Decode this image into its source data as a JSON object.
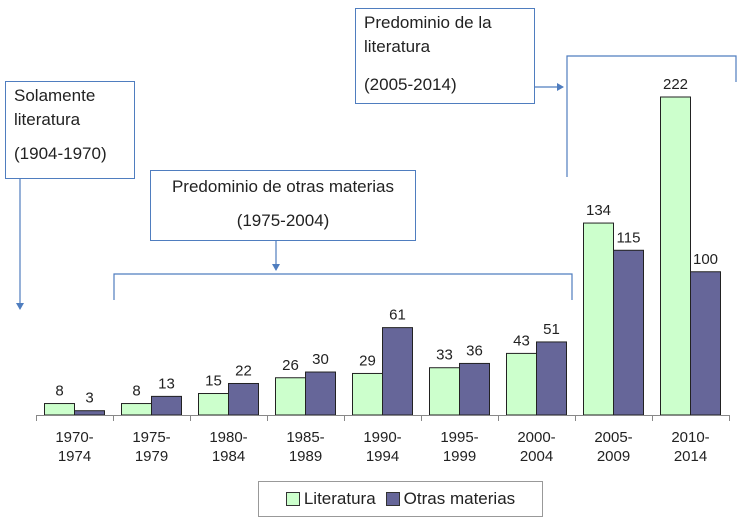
{
  "chart_data": {
    "type": "bar",
    "categories": [
      [
        "1970-",
        "1974"
      ],
      [
        "1975-",
        "1979"
      ],
      [
        "1980-",
        "1984"
      ],
      [
        "1985-",
        "1989"
      ],
      [
        "1990-",
        "1994"
      ],
      [
        "1995-",
        "1999"
      ],
      [
        "2000-",
        "2004"
      ],
      [
        "2005-",
        "2009"
      ],
      [
        "2010-",
        "2014"
      ]
    ],
    "series": [
      {
        "name": "Literatura",
        "color": "#ccffcc",
        "values": [
          8,
          8,
          15,
          26,
          29,
          33,
          43,
          134,
          222
        ]
      },
      {
        "name": "Otras materias",
        "color": "#666699",
        "values": [
          3,
          13,
          22,
          30,
          61,
          36,
          51,
          115,
          100
        ]
      }
    ],
    "ylim": [
      0,
      232
    ],
    "legend": "bottom",
    "annotations": [
      {
        "id": "solo",
        "lines": [
          "Solamente",
          "literatura"
        ],
        "period": "(1904-1970)"
      },
      {
        "id": "otras",
        "lines": [
          "Predominio de otras materias"
        ],
        "period": "(1975-2004)"
      },
      {
        "id": "lit",
        "lines": [
          "Predominio de la",
          "literatura"
        ],
        "period": "(2005-2014)"
      }
    ]
  },
  "colors": {
    "border": "#4f7dbf",
    "axis": "#888888"
  }
}
